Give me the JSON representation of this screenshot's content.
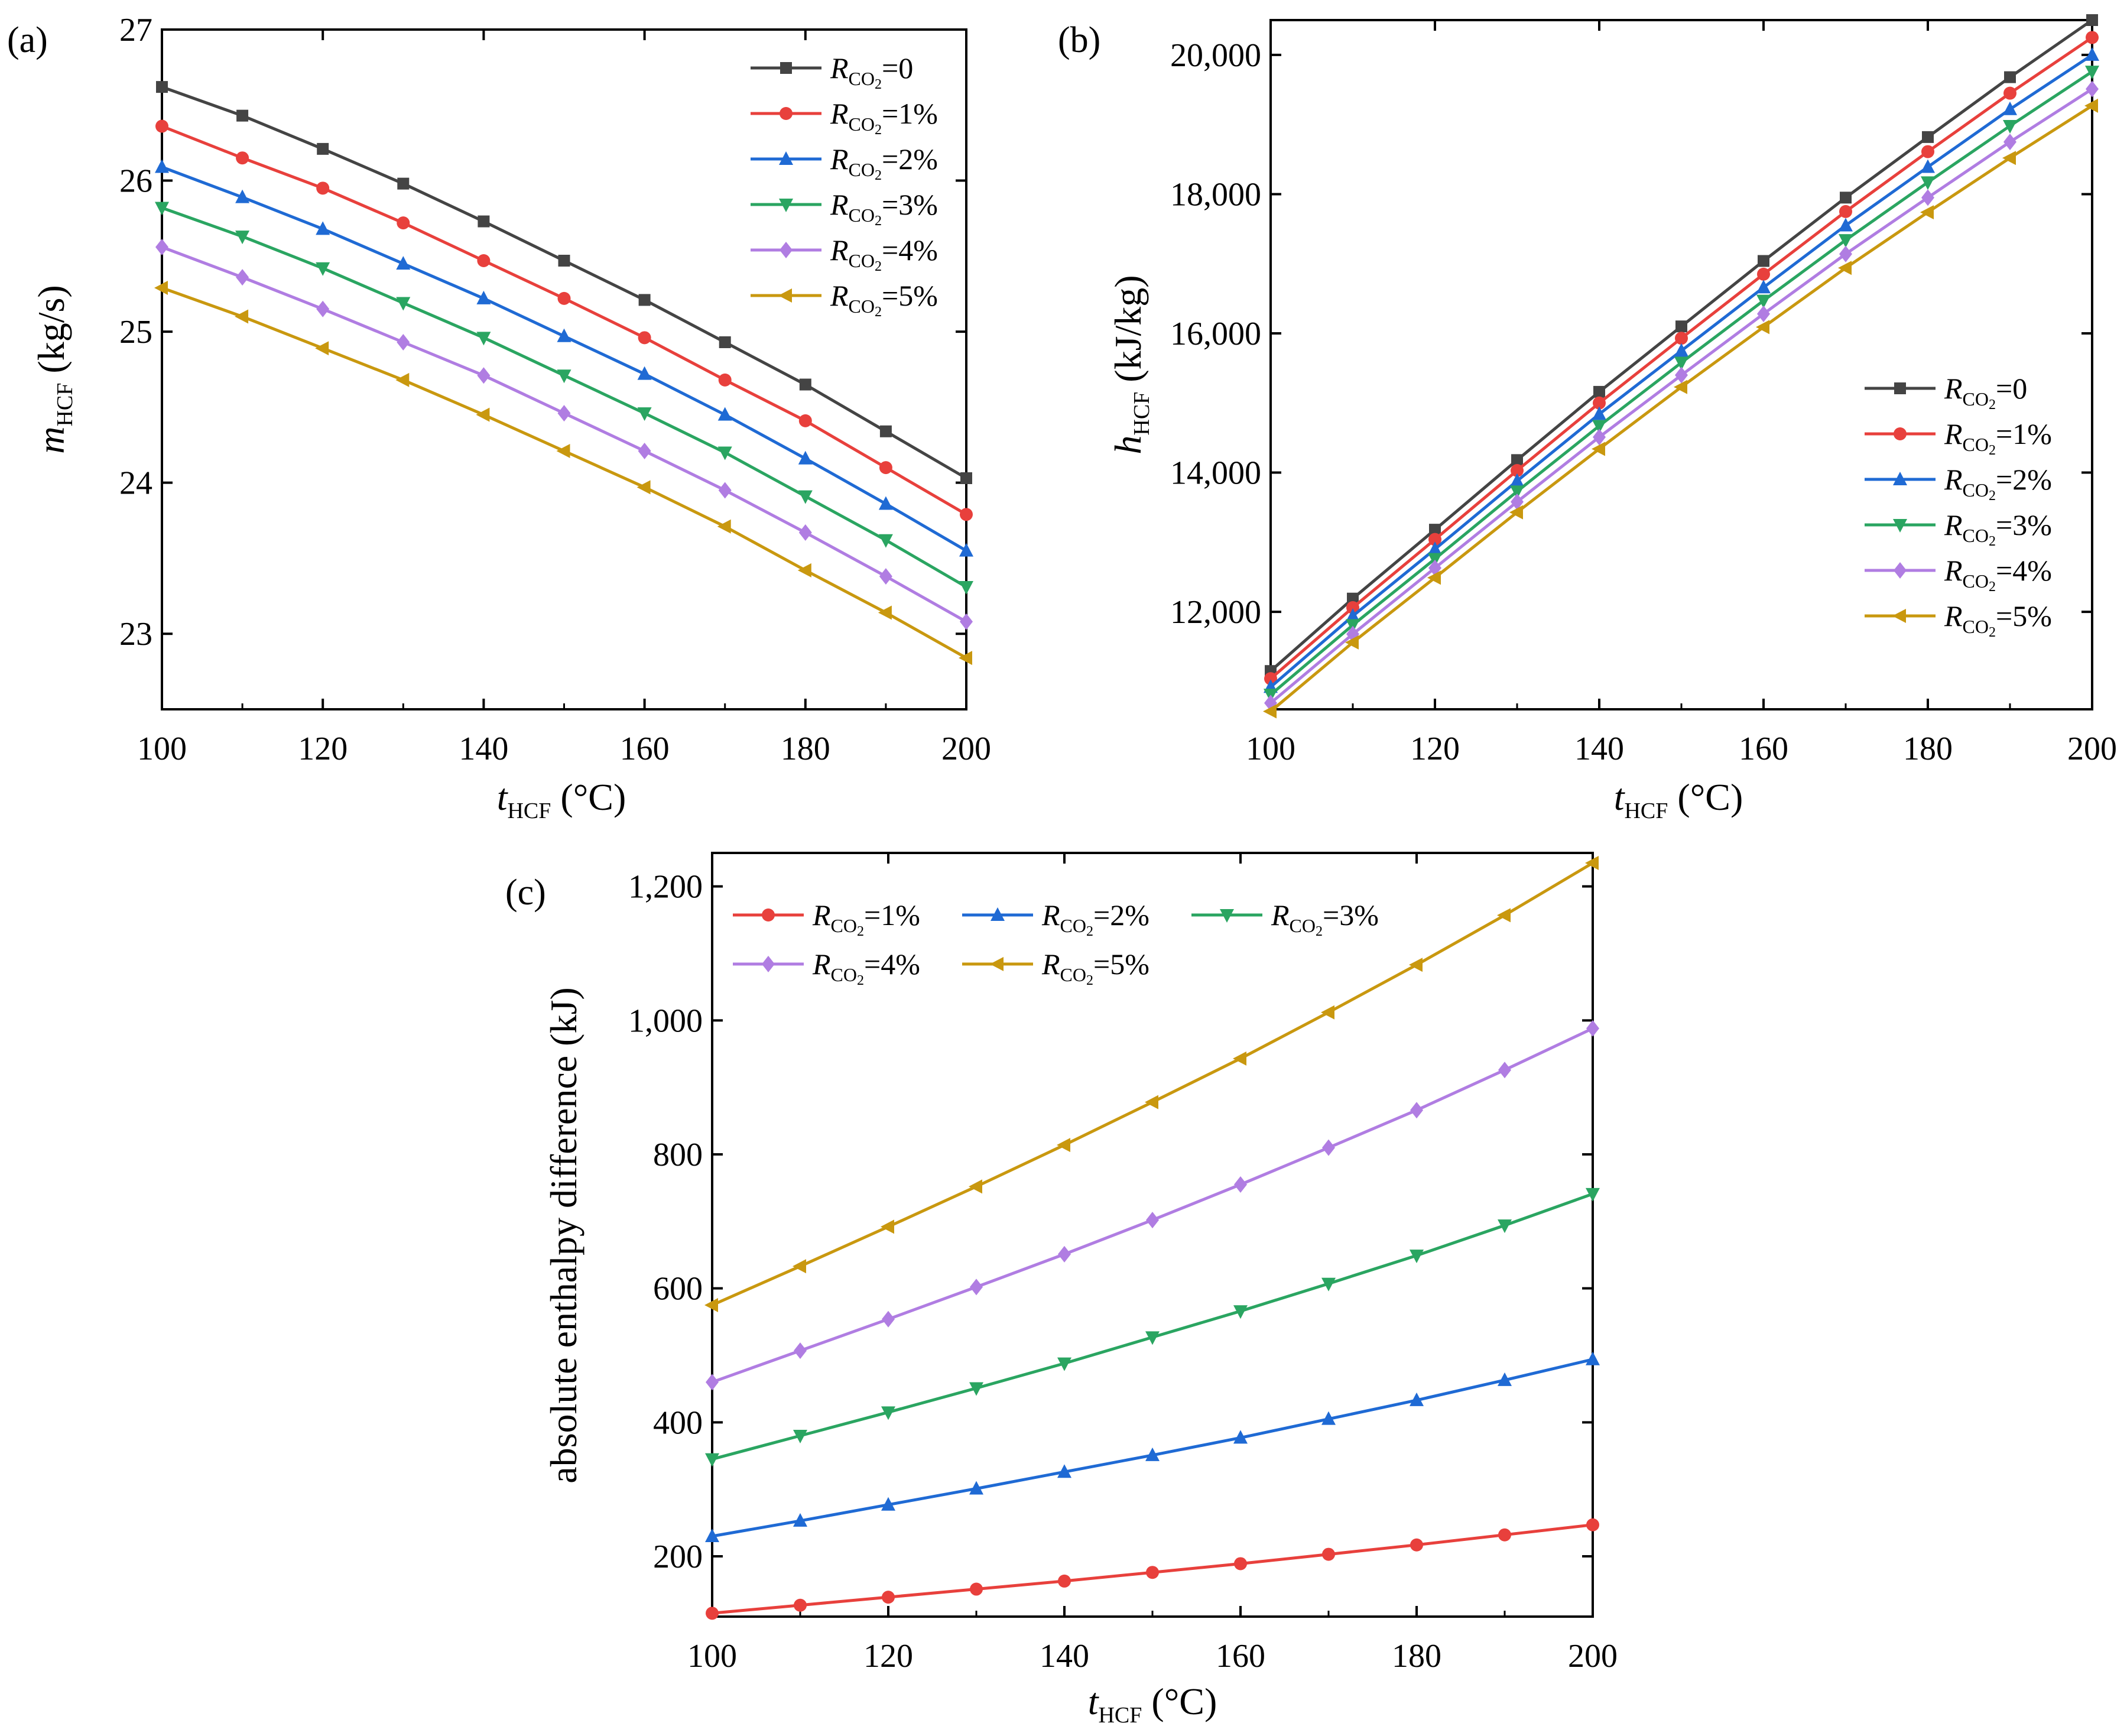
{
  "figure": {
    "panels": [
      "(a)",
      "(b)",
      "(c)"
    ]
  },
  "series_style": {
    "R0": {
      "color": "#444444",
      "marker": "square"
    },
    "R1": {
      "color": "#e8403c",
      "marker": "circle"
    },
    "R2": {
      "color": "#1f6ad4",
      "marker": "triangle-up"
    },
    "R3": {
      "color": "#2aa561",
      "marker": "triangle-down"
    },
    "R4": {
      "color": "#b07de2",
      "marker": "diamond"
    },
    "R5": {
      "color": "#c9980f",
      "marker": "triangle-left"
    }
  },
  "legend_labels": {
    "R": "R",
    "sub": "CO",
    "subsub": "2",
    "R0": "=0",
    "R1": "=1%",
    "R2": "=2%",
    "R3": "=3%",
    "R4": "=4%",
    "R5": "=5%"
  },
  "chart_data": [
    {
      "id": "a",
      "type": "line",
      "panel_label": "(a)",
      "xlabel": {
        "main": "t",
        "sub": "HCF",
        "unit": " (°C)"
      },
      "ylabel": {
        "main": "m",
        "sub": "HCF",
        "unit": " (kg/s)"
      },
      "xlim": [
        100,
        200
      ],
      "ylim": [
        22.5,
        27
      ],
      "xticks": [
        100,
        120,
        140,
        160,
        180,
        200
      ],
      "xtick_labels": [
        "100",
        "120",
        "140",
        "160",
        "180",
        "200"
      ],
      "yticks": [
        23,
        24,
        25,
        26,
        27
      ],
      "ytick_labels": [
        "23",
        "24",
        "25",
        "26",
        "27"
      ],
      "legend": "top-right",
      "x": [
        100,
        110,
        120,
        130,
        140,
        150,
        160,
        170,
        180,
        190,
        200
      ],
      "series": [
        {
          "key": "R0",
          "values": [
            26.62,
            26.43,
            26.21,
            25.98,
            25.73,
            25.47,
            25.21,
            24.93,
            24.65,
            24.34,
            24.03
          ]
        },
        {
          "key": "R1",
          "values": [
            26.36,
            26.15,
            25.95,
            25.72,
            25.47,
            25.22,
            24.96,
            24.68,
            24.41,
            24.1,
            23.79
          ]
        },
        {
          "key": "R2",
          "values": [
            26.09,
            25.89,
            25.68,
            25.45,
            25.22,
            24.97,
            24.72,
            24.45,
            24.16,
            23.86,
            23.55
          ]
        },
        {
          "key": "R3",
          "values": [
            25.82,
            25.63,
            25.42,
            25.19,
            24.96,
            24.71,
            24.46,
            24.2,
            23.91,
            23.62,
            23.31
          ]
        },
        {
          "key": "R4",
          "values": [
            25.56,
            25.36,
            25.15,
            24.93,
            24.71,
            24.46,
            24.21,
            23.95,
            23.67,
            23.38,
            23.08
          ]
        },
        {
          "key": "R5",
          "values": [
            25.29,
            25.1,
            24.89,
            24.68,
            24.45,
            24.21,
            23.97,
            23.71,
            23.42,
            23.14,
            22.84
          ]
        }
      ]
    },
    {
      "id": "b",
      "type": "line",
      "panel_label": "(b)",
      "xlabel": {
        "main": "t",
        "sub": "HCF",
        "unit": " (°C)"
      },
      "ylabel": {
        "main": "h",
        "sub": "HCF",
        "unit": " (kJ/kg)"
      },
      "xlim": [
        100,
        200
      ],
      "ylim": [
        10600,
        20500
      ],
      "xticks": [
        100,
        120,
        140,
        160,
        180,
        200
      ],
      "xtick_labels": [
        "100",
        "120",
        "140",
        "160",
        "180",
        "200"
      ],
      "yticks": [
        12000,
        14000,
        16000,
        18000,
        20000
      ],
      "ytick_labels": [
        "12,000",
        "14,000",
        "16,000",
        "18,000",
        "20,000"
      ],
      "legend": "right",
      "x": [
        100,
        110,
        120,
        130,
        140,
        150,
        160,
        170,
        180,
        190,
        200
      ],
      "series": [
        {
          "key": "R0",
          "values": [
            11150,
            12190,
            13180,
            14180,
            15160,
            16100,
            17040,
            17950,
            18820,
            19680,
            20500
          ]
        },
        {
          "key": "R1",
          "values": [
            11040,
            12060,
            13040,
            14030,
            15000,
            15930,
            16850,
            17750,
            18610,
            19450,
            20250
          ]
        },
        {
          "key": "R2",
          "values": [
            10920,
            11940,
            12900,
            13880,
            14840,
            15750,
            16660,
            17550,
            18390,
            19220,
            20000
          ]
        },
        {
          "key": "R3",
          "values": [
            10810,
            11810,
            12760,
            13730,
            14670,
            15580,
            16470,
            17340,
            18170,
            18980,
            19760
          ]
        },
        {
          "key": "R4",
          "values": [
            10690,
            11680,
            12630,
            13580,
            14510,
            15400,
            16280,
            17140,
            17950,
            18750,
            19510
          ]
        },
        {
          "key": "R5",
          "values": [
            10570,
            11560,
            12490,
            13430,
            14340,
            15230,
            16090,
            16940,
            17740,
            18520,
            19270
          ]
        }
      ]
    },
    {
      "id": "c",
      "type": "line",
      "panel_label": "(c)",
      "xlabel": {
        "main": "t",
        "sub": "HCF",
        "unit": " (°C)"
      },
      "ylabel": {
        "main": "absolute enthalpy difference (kJ)"
      },
      "xlim": [
        100,
        200
      ],
      "ylim": [
        110,
        1250
      ],
      "xticks": [
        100,
        120,
        140,
        160,
        180,
        200
      ],
      "xtick_labels": [
        "100",
        "120",
        "140",
        "160",
        "180",
        "200"
      ],
      "yticks": [
        200,
        400,
        600,
        800,
        1000,
        1200
      ],
      "ytick_labels": [
        "200",
        "400",
        "600",
        "800",
        "1,000",
        "1,200"
      ],
      "legend": "top-left",
      "x": [
        100,
        110,
        120,
        130,
        140,
        150,
        160,
        170,
        180,
        190,
        200
      ],
      "series": [
        {
          "key": "R1",
          "values": [
            115,
            127,
            139,
            151,
            163,
            176,
            189,
            203,
            217,
            232,
            247
          ]
        },
        {
          "key": "R2",
          "values": [
            230,
            253,
            277,
            301,
            326,
            351,
            377,
            405,
            433,
            463,
            494
          ]
        },
        {
          "key": "R3",
          "values": [
            345,
            380,
            415,
            451,
            488,
            527,
            566,
            607,
            649,
            694,
            741
          ]
        },
        {
          "key": "R4",
          "values": [
            460,
            507,
            554,
            602,
            651,
            702,
            755,
            810,
            866,
            926,
            988
          ]
        },
        {
          "key": "R5",
          "values": [
            575,
            633,
            692,
            752,
            814,
            878,
            943,
            1012,
            1083,
            1157,
            1235
          ]
        }
      ]
    }
  ]
}
